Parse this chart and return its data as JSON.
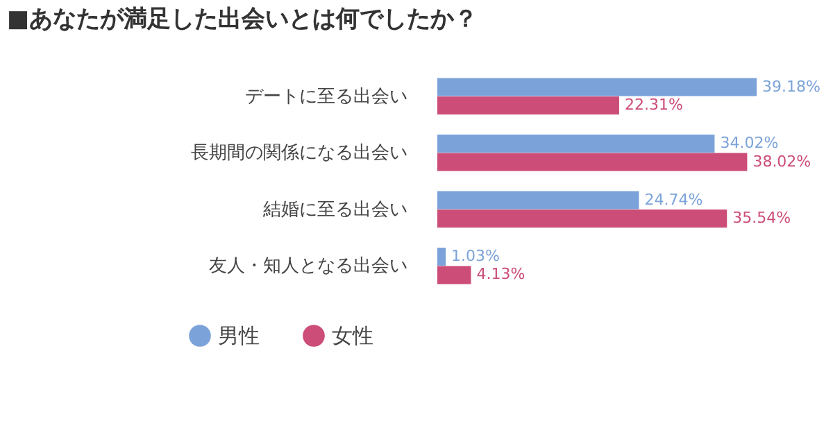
{
  "chart_data": {
    "type": "bar",
    "orientation": "horizontal",
    "title": "■あなたが満足した出会いとは何でしたか？",
    "categories": [
      "デートに至る出会い",
      "長期間の関係になる出会い",
      "結婚に至る出会い",
      "友人・知人となる出会い"
    ],
    "series": [
      {
        "name": "男性",
        "color": "#7ba3d9",
        "values": [
          39.18,
          34.02,
          24.74,
          1.03
        ],
        "value_labels": [
          "39.18%",
          "34.02%",
          "24.74%",
          "1.03%"
        ]
      },
      {
        "name": "女性",
        "color": "#cc4d77",
        "values": [
          22.31,
          38.02,
          35.54,
          4.13
        ],
        "value_labels": [
          "22.31%",
          "38.02%",
          "35.54%",
          "4.13%"
        ]
      }
    ],
    "tick_labels": "y",
    "legend": "bottom left"
  }
}
